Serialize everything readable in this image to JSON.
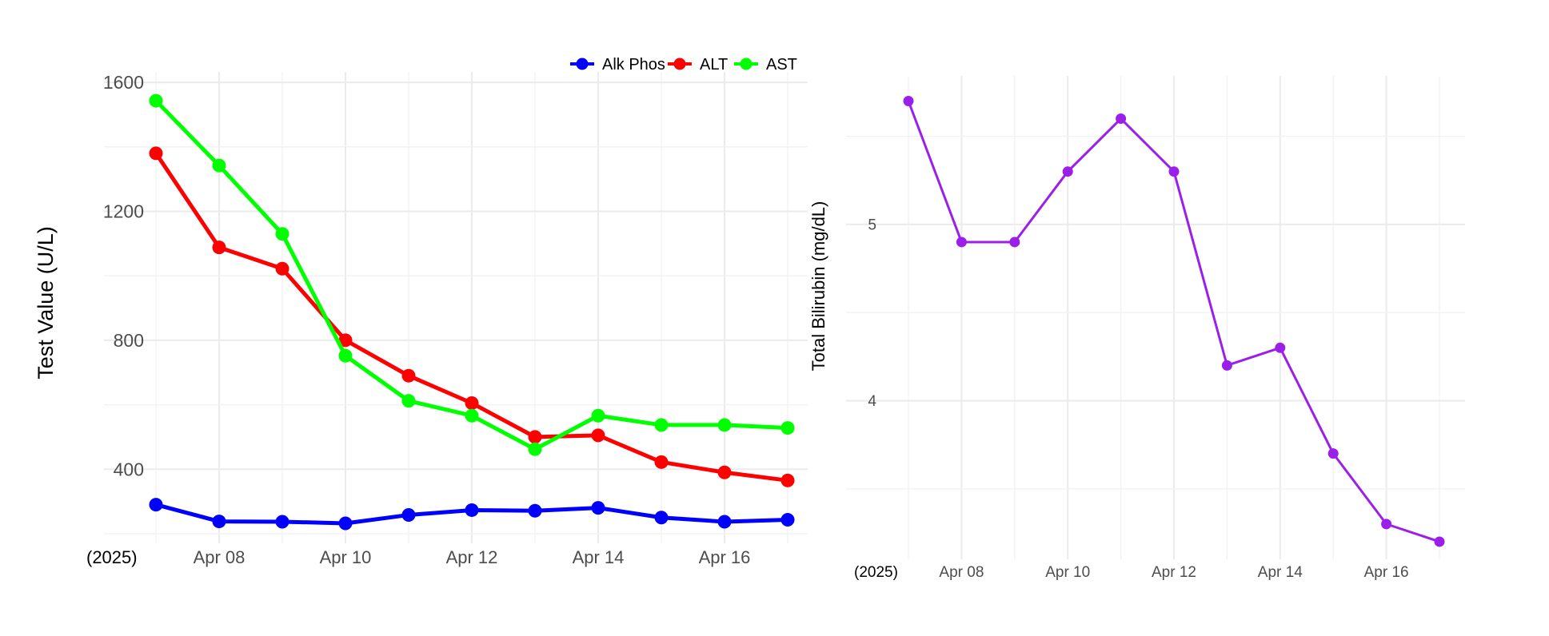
{
  "chart_data": [
    {
      "type": "line",
      "title": "",
      "xlabel": "",
      "ylabel": "Test Value (U/L)",
      "year_label": "(2025)",
      "x": [
        "2025-04-07",
        "2025-04-08",
        "2025-04-09",
        "2025-04-10",
        "2025-04-11",
        "2025-04-12",
        "2025-04-13",
        "2025-04-14",
        "2025-04-15",
        "2025-04-16",
        "2025-04-17"
      ],
      "x_ticks": [
        "Apr 08",
        "Apr 10",
        "Apr 12",
        "Apr 14",
        "Apr 16"
      ],
      "y_ticks": [
        400,
        800,
        1200,
        1600
      ],
      "ylim": [
        170,
        1620
      ],
      "grid": true,
      "legend_position": "top-right",
      "series": [
        {
          "name": "Alk Phos",
          "color": "#0000ff",
          "values": [
            290,
            238,
            237,
            232,
            258,
            273,
            271,
            280,
            250,
            237,
            243
          ]
        },
        {
          "name": "ALT",
          "color": "#ff0000",
          "values": [
            1380,
            1088,
            1022,
            800,
            690,
            605,
            500,
            505,
            422,
            390,
            365
          ]
        },
        {
          "name": "AST",
          "color": "#00ff00",
          "values": [
            1543,
            1342,
            1130,
            752,
            612,
            566,
            462,
            566,
            537,
            537,
            528
          ]
        }
      ]
    },
    {
      "type": "line",
      "title": "",
      "xlabel": "",
      "ylabel": "Total Bilirubin (mg/dL)",
      "year_label": "(2025)",
      "x": [
        "2025-04-07",
        "2025-04-08",
        "2025-04-09",
        "2025-04-10",
        "2025-04-11",
        "2025-04-12",
        "2025-04-13",
        "2025-04-14",
        "2025-04-15",
        "2025-04-16",
        "2025-04-17"
      ],
      "x_ticks": [
        "Apr 08",
        "Apr 10",
        "Apr 12",
        "Apr 14",
        "Apr 16"
      ],
      "y_ticks": [
        4,
        5
      ],
      "ylim": [
        3.1,
        5.82
      ],
      "grid": true,
      "legend_position": "none",
      "series": [
        {
          "name": "",
          "color": "#9b1fe8",
          "values": [
            5.7,
            4.9,
            4.9,
            5.3,
            5.6,
            5.3,
            4.2,
            4.3,
            3.7,
            3.3,
            3.2
          ]
        }
      ]
    }
  ]
}
